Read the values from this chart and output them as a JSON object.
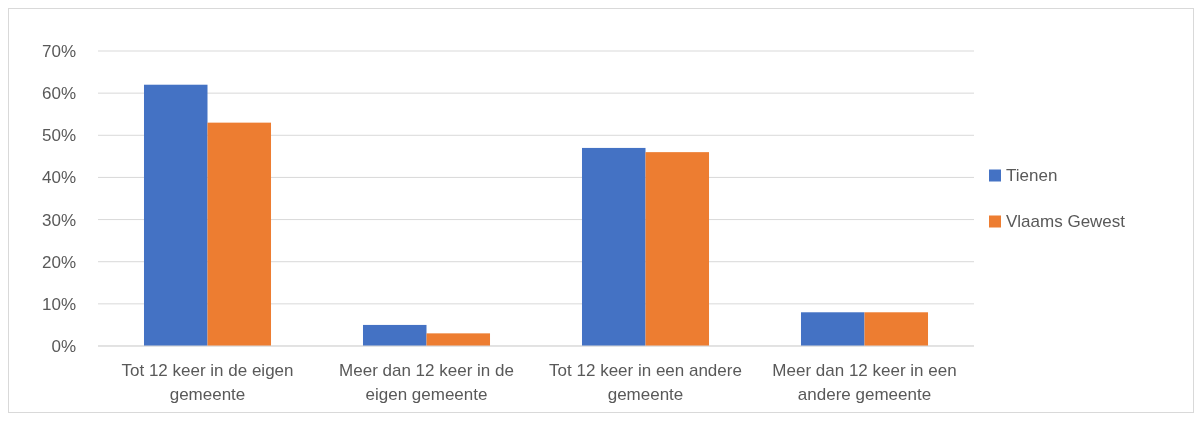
{
  "chart_data": {
    "type": "bar",
    "categories": [
      "Tot 12 keer in de eigen gemeente",
      "Meer dan 12 keer in de eigen gemeente",
      "Tot 12 keer in een andere gemeente",
      "Meer dan 12 keer in een andere gemeente"
    ],
    "series": [
      {
        "name": "Tienen",
        "color": "#4472c4",
        "values": [
          62,
          5,
          47,
          8
        ]
      },
      {
        "name": "Vlaams Gewest",
        "color": "#ed7d31",
        "values": [
          53,
          3,
          46,
          8
        ]
      }
    ],
    "ylim": [
      0,
      70
    ],
    "yticks": [
      {
        "value": 0,
        "label": "0%"
      },
      {
        "value": 10,
        "label": "10%"
      },
      {
        "value": 20,
        "label": "20%"
      },
      {
        "value": 30,
        "label": "30%"
      },
      {
        "value": 40,
        "label": "40%"
      },
      {
        "value": 50,
        "label": "50%"
      },
      {
        "value": 60,
        "label": "60%"
      },
      {
        "value": 70,
        "label": "70%"
      }
    ],
    "grid": "y",
    "legend": "right"
  }
}
